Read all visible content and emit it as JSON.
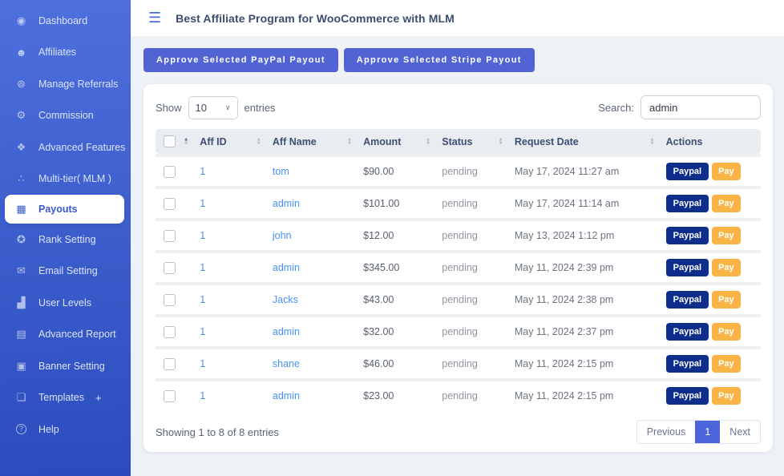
{
  "topbar": {
    "title": "Best Affiliate Program for WooCommerce with MLM",
    "menu_glyph": "☰"
  },
  "sidebar": {
    "items": [
      {
        "label": "Dashboard",
        "glyph": "◉"
      },
      {
        "label": "Affiliates",
        "glyph": "☻"
      },
      {
        "label": "Manage Referrals",
        "glyph": "⊚"
      },
      {
        "label": "Commission",
        "glyph": "⚙"
      },
      {
        "label": "Advanced Features",
        "glyph": "❖"
      },
      {
        "label": "Multi-tier( MLM )",
        "glyph": "∴"
      },
      {
        "label": "Payouts",
        "glyph": "▦",
        "active": true
      },
      {
        "label": "Rank Setting",
        "glyph": "✪"
      },
      {
        "label": "Email Setting",
        "glyph": "✉"
      },
      {
        "label": "User Levels",
        "glyph": "▟"
      },
      {
        "label": "Advanced Report",
        "glyph": "▤"
      },
      {
        "label": "Banner Setting",
        "glyph": "▣"
      },
      {
        "label": "Templates",
        "glyph": "❏",
        "suffix": "+"
      },
      {
        "label": "Help",
        "glyph": "?"
      }
    ]
  },
  "toolbar": {
    "paypal_button": "Approve Selected PayPal Payout",
    "stripe_button": "Approve Selected Stripe Payout"
  },
  "table": {
    "show_label": "Show",
    "page_size": "10",
    "entries_label": "entries",
    "select_chevron": "∨",
    "search_label": "Search:",
    "search_value": "admin",
    "sort_up": "▲",
    "sort_down": "▼",
    "columns": {
      "aff_id": "Aff ID",
      "aff_name": "Aff Name",
      "amount": "Amount",
      "status": "Status",
      "request_date": "Request Date",
      "actions": "Actions"
    },
    "actions": {
      "paypal": "Paypal",
      "pay": "Pay"
    },
    "rows": [
      {
        "aff_id": "1",
        "aff_name": "tom",
        "amount": "$90.00",
        "status": "pending",
        "request_date": "May 17, 2024 11:27 am"
      },
      {
        "aff_id": "1",
        "aff_name": "admin",
        "amount": "$101.00",
        "status": "pending",
        "request_date": "May 17, 2024 11:14 am"
      },
      {
        "aff_id": "1",
        "aff_name": "john",
        "amount": "$12.00",
        "status": "pending",
        "request_date": "May 13, 2024 1:12 pm"
      },
      {
        "aff_id": "1",
        "aff_name": "admin",
        "amount": "$345.00",
        "status": "pending",
        "request_date": "May 11, 2024 2:39 pm"
      },
      {
        "aff_id": "1",
        "aff_name": "Jacks",
        "amount": "$43.00",
        "status": "pending",
        "request_date": "May 11, 2024 2:38 pm"
      },
      {
        "aff_id": "1",
        "aff_name": "admin",
        "amount": "$32.00",
        "status": "pending",
        "request_date": "May 11, 2024 2:37 pm"
      },
      {
        "aff_id": "1",
        "aff_name": "shane",
        "amount": "$46.00",
        "status": "pending",
        "request_date": "May 11, 2024 2:15 pm"
      },
      {
        "aff_id": "1",
        "aff_name": "admin",
        "amount": "$23.00",
        "status": "pending",
        "request_date": "May 11, 2024 2:15 pm"
      }
    ],
    "footer": {
      "summary": "Showing 1 to 8 of 8 entries",
      "previous": "Previous",
      "page": "1",
      "next": "Next"
    }
  },
  "colors": {
    "sidebar_top": "#4e70dd",
    "sidebar_bottom": "#2a4cbd",
    "accent_button": "#5264d4",
    "paypal_button": "#0d2e8b",
    "pay_button": "#f9b445",
    "link": "#4a90f4",
    "pagination_active": "#4b64d9",
    "header_row_bg": "#e9ecf1",
    "content_bg": "#eef1f6"
  }
}
